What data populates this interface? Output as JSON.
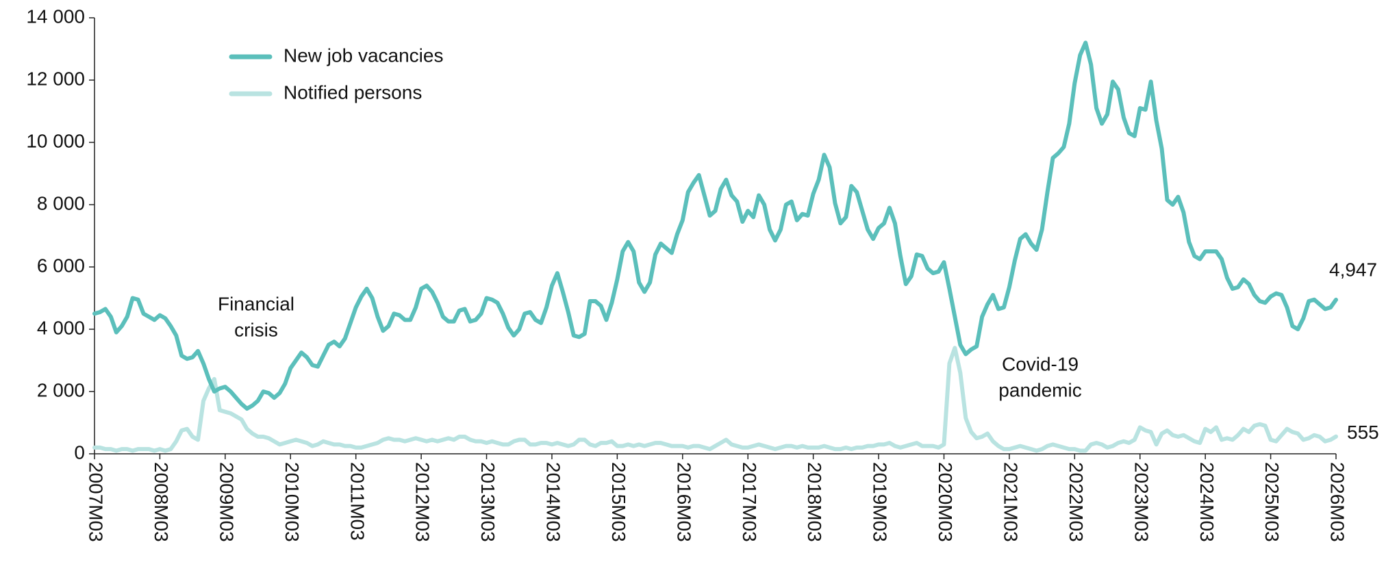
{
  "chart_data": {
    "type": "line",
    "categories": [
      "2007M03",
      null,
      null,
      null,
      null,
      null,
      null,
      null,
      null,
      null,
      null,
      null,
      "2008M03",
      null,
      null,
      null,
      null,
      null,
      null,
      null,
      null,
      null,
      null,
      null,
      "2009M03",
      null,
      null,
      null,
      null,
      null,
      null,
      null,
      null,
      null,
      null,
      null,
      "2010M03",
      null,
      null,
      null,
      null,
      null,
      null,
      null,
      null,
      null,
      null,
      null,
      "2011M03",
      null,
      null,
      null,
      null,
      null,
      null,
      null,
      null,
      null,
      null,
      null,
      "2012M03",
      null,
      null,
      null,
      null,
      null,
      null,
      null,
      null,
      null,
      null,
      null,
      "2013M03",
      null,
      null,
      null,
      null,
      null,
      null,
      null,
      null,
      null,
      null,
      null,
      "2014M03",
      null,
      null,
      null,
      null,
      null,
      null,
      null,
      null,
      null,
      null,
      null,
      "2015M03",
      null,
      null,
      null,
      null,
      null,
      null,
      null,
      null,
      null,
      null,
      null,
      "2016M03",
      null,
      null,
      null,
      null,
      null,
      null,
      null,
      null,
      null,
      null,
      null,
      "2017M03",
      null,
      null,
      null,
      null,
      null,
      null,
      null,
      null,
      null,
      null,
      null,
      "2018M03",
      null,
      null,
      null,
      null,
      null,
      null,
      null,
      null,
      null,
      null,
      null,
      "2019M03",
      null,
      null,
      null,
      null,
      null,
      null,
      null,
      null,
      null,
      null,
      null,
      "2020M03",
      null,
      null,
      null,
      null,
      null,
      null,
      null,
      null,
      null,
      null,
      null,
      "2021M03",
      null,
      null,
      null,
      null,
      null,
      null,
      null,
      null,
      null,
      null,
      null,
      "2022M03",
      null,
      null,
      null,
      null,
      null,
      null,
      null,
      null,
      null,
      null,
      null,
      "2023M03",
      null,
      null,
      null,
      null,
      null,
      null,
      null,
      null,
      null,
      null,
      null,
      "2024M03",
      null,
      null,
      null,
      null,
      null,
      null,
      null,
      null,
      null,
      null,
      null,
      "2025M03",
      null,
      null,
      null,
      null,
      null,
      null,
      null,
      null,
      null,
      null,
      null,
      "2026M03"
    ],
    "series": [
      {
        "name": "New job vacancies",
        "color": "#5bbfbb",
        "values": [
          4500,
          4550,
          4650,
          4400,
          3900,
          4100,
          4400,
          5000,
          4950,
          4500,
          4400,
          4300,
          4450,
          4350,
          4100,
          3800,
          3150,
          3050,
          3100,
          3300,
          2900,
          2400,
          2000,
          2100,
          2150,
          2000,
          1800,
          1600,
          1450,
          1550,
          1700,
          2000,
          1950,
          1800,
          1950,
          2250,
          2750,
          3000,
          3250,
          3100,
          2850,
          2800,
          3150,
          3500,
          3600,
          3450,
          3700,
          4200,
          4700,
          5050,
          5300,
          5000,
          4400,
          3950,
          4100,
          4500,
          4450,
          4300,
          4300,
          4700,
          5300,
          5400,
          5200,
          4850,
          4400,
          4250,
          4250,
          4600,
          4650,
          4250,
          4300,
          4500,
          5000,
          4950,
          4850,
          4500,
          4050,
          3800,
          4000,
          4500,
          4550,
          4300,
          4200,
          4700,
          5400,
          5800,
          5200,
          4550,
          3800,
          3750,
          3850,
          4900,
          4900,
          4750,
          4300,
          4850,
          5600,
          6500,
          6800,
          6500,
          5500,
          5200,
          5500,
          6400,
          6750,
          6600,
          6450,
          7050,
          7500,
          8400,
          8700,
          8950,
          8300,
          7650,
          7800,
          8500,
          8800,
          8300,
          8100,
          7450,
          7800,
          7600,
          8300,
          8000,
          7200,
          6850,
          7200,
          8000,
          8100,
          7500,
          7700,
          7650,
          8350,
          8800,
          9600,
          9200,
          8050,
          7400,
          7600,
          8600,
          8400,
          7800,
          7200,
          6900,
          7250,
          7400,
          7900,
          7400,
          6350,
          5450,
          5700,
          6400,
          6350,
          5950,
          5800,
          5850,
          6150,
          5300,
          4400,
          3500,
          3200,
          3350,
          3450,
          4400,
          4800,
          5100,
          4650,
          4700,
          5350,
          6200,
          6900,
          7050,
          6750,
          6550,
          7200,
          8400,
          9500,
          9650,
          9850,
          10600,
          11900,
          12800,
          13200,
          12500,
          11100,
          10600,
          10900,
          11950,
          11700,
          10800,
          10300,
          10200,
          11100,
          11050,
          11950,
          10700,
          9800,
          8150,
          8000,
          8250,
          7750,
          6800,
          6350,
          6250,
          6500,
          6500,
          6500,
          6250,
          5650,
          5300,
          5350,
          5600,
          5450,
          5100,
          4900,
          4850,
          5050,
          5150,
          5100,
          4700,
          4100,
          4000,
          4350,
          4900,
          4950,
          4800,
          4650,
          4700,
          4947
        ],
        "value_labels": [
          null,
          null,
          null,
          null,
          null,
          null,
          null,
          null,
          null,
          null,
          null,
          null,
          null,
          null,
          null,
          null,
          null,
          null,
          null,
          null,
          null,
          null,
          null,
          null,
          null,
          null,
          null,
          null,
          null,
          null,
          null,
          null,
          null,
          null,
          null,
          null,
          null,
          null,
          null,
          null,
          null,
          null,
          null,
          null,
          null,
          null,
          null,
          null,
          null,
          null,
          null,
          null,
          null,
          null,
          null,
          null,
          null,
          null,
          null,
          null,
          null,
          null,
          null,
          null,
          null,
          null,
          null,
          null,
          null,
          null,
          null,
          null,
          null,
          null,
          null,
          null,
          null,
          null,
          null,
          null,
          null,
          null,
          null,
          null,
          null,
          null,
          null,
          null,
          null,
          null,
          null,
          null,
          null,
          null,
          null,
          null,
          null,
          null,
          null,
          null,
          null,
          null,
          null,
          null,
          null,
          null,
          null,
          null,
          null,
          null,
          null,
          null,
          null,
          null,
          null,
          null,
          null,
          null,
          null,
          null,
          null,
          null,
          null,
          null,
          null,
          null,
          null,
          null,
          null,
          null,
          null,
          null,
          null,
          null,
          null,
          null,
          null,
          null,
          null,
          null,
          null,
          null,
          null,
          null,
          null,
          null,
          null,
          null,
          null,
          null,
          null,
          null,
          null,
          null,
          null,
          null,
          null,
          null,
          null,
          null,
          null,
          null,
          null,
          null,
          null,
          null,
          null,
          null,
          null,
          null,
          null,
          null,
          null,
          null,
          null,
          null,
          null,
          null,
          null,
          null,
          null,
          null,
          null,
          null,
          null,
          null,
          null,
          null,
          null,
          null,
          null,
          null,
          null,
          null,
          null,
          null,
          null,
          null,
          null,
          null,
          null,
          null,
          null,
          null,
          null,
          null,
          null,
          null,
          null,
          null,
          null,
          null,
          null,
          null,
          null,
          null,
          null,
          null,
          null,
          null,
          null,
          null,
          null,
          null,
          null,
          null,
          null,
          null,
          "4,947"
        ]
      },
      {
        "name": "Notified persons",
        "color": "#b9e3e1",
        "values": [
          200,
          200,
          150,
          150,
          100,
          150,
          150,
          100,
          150,
          150,
          150,
          100,
          150,
          100,
          150,
          400,
          750,
          800,
          550,
          450,
          1700,
          2100,
          2400,
          1400,
          1350,
          1300,
          1200,
          1100,
          800,
          650,
          550,
          550,
          500,
          400,
          300,
          350,
          400,
          450,
          400,
          350,
          250,
          300,
          400,
          350,
          300,
          300,
          250,
          250,
          200,
          200,
          250,
          300,
          350,
          450,
          500,
          450,
          450,
          400,
          450,
          500,
          450,
          400,
          450,
          400,
          450,
          500,
          450,
          550,
          550,
          450,
          400,
          400,
          350,
          400,
          350,
          300,
          300,
          400,
          450,
          450,
          300,
          300,
          350,
          350,
          300,
          350,
          300,
          250,
          300,
          450,
          450,
          300,
          250,
          350,
          350,
          400,
          250,
          250,
          300,
          250,
          300,
          250,
          300,
          350,
          350,
          300,
          250,
          250,
          250,
          200,
          250,
          250,
          200,
          150,
          250,
          350,
          450,
          300,
          250,
          200,
          200,
          250,
          300,
          250,
          200,
          150,
          200,
          250,
          250,
          200,
          250,
          200,
          200,
          200,
          250,
          200,
          150,
          150,
          200,
          150,
          200,
          200,
          250,
          250,
          300,
          300,
          350,
          250,
          200,
          250,
          300,
          350,
          250,
          250,
          250,
          200,
          300,
          2900,
          3400,
          2600,
          1150,
          700,
          500,
          550,
          650,
          400,
          250,
          150,
          150,
          200,
          250,
          200,
          150,
          100,
          150,
          250,
          300,
          250,
          200,
          150,
          150,
          100,
          100,
          300,
          350,
          300,
          200,
          250,
          350,
          400,
          350,
          450,
          850,
          750,
          700,
          300,
          650,
          750,
          600,
          550,
          600,
          500,
          400,
          350,
          800,
          700,
          850,
          450,
          500,
          450,
          600,
          800,
          700,
          900,
          950,
          900,
          450,
          400,
          600,
          800,
          700,
          650,
          450,
          500,
          600,
          550,
          400,
          450,
          555
        ]
      }
    ],
    "ylim": [
      0,
      14000
    ],
    "yticks": [
      0,
      {
        "value": 2000,
        "label": "2 000"
      },
      {
        "value": 4000,
        "label": "4 000"
      },
      {
        "value": 6000,
        "label": "6 000"
      },
      {
        "value": 8000,
        "label": "8 000"
      },
      {
        "value": 10000,
        "label": "10 000"
      },
      {
        "value": 12000,
        "label": "12 000"
      },
      {
        "value": 14000,
        "label": "14 000"
      }
    ],
    "grid": false,
    "legend": "top-left",
    "annotations": [
      {
        "lines": [
          "Financial",
          "crisis"
        ]
      },
      {
        "lines": [
          "Covid-19",
          "pandemic"
        ]
      }
    ]
  }
}
